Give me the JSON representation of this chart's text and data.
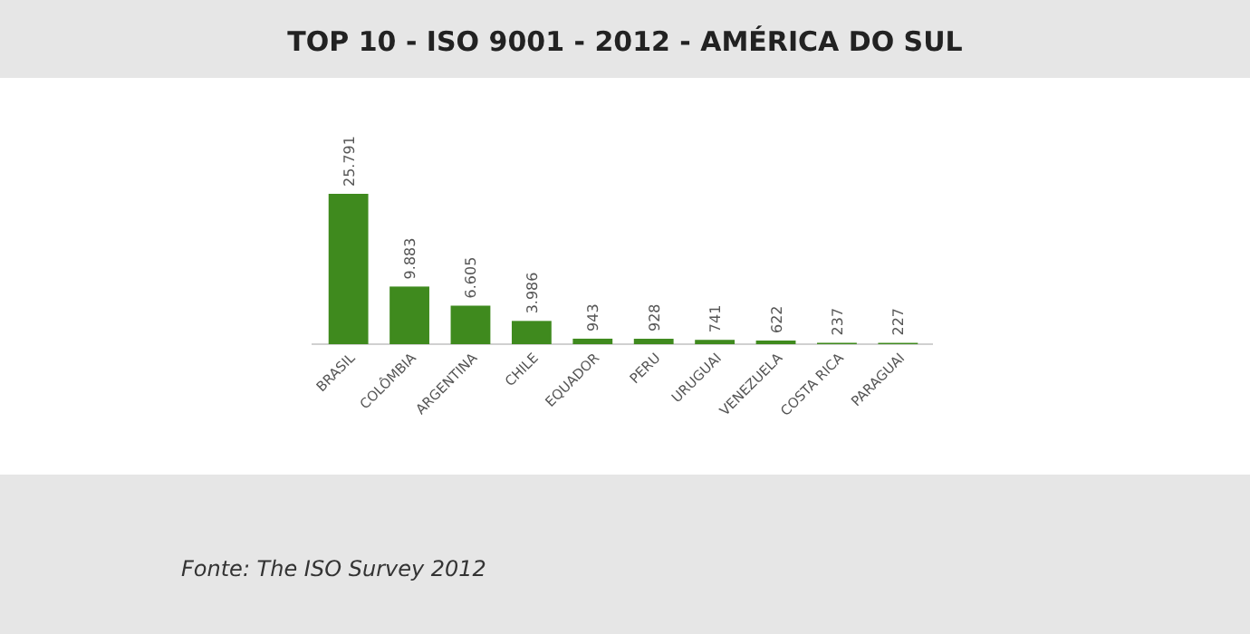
{
  "chart_data": {
    "type": "bar",
    "title": "TOP 10 - ISO 9001 - 2012 - AMÉRICA DO SUL",
    "categories": [
      "BRASIL",
      "COLÔMBIA",
      "ARGENTINA",
      "CHILE",
      "EQUADOR",
      "PERU",
      "URUGUAI",
      "VENEZUELA",
      "COSTA RICA",
      "PARAGUAI"
    ],
    "values": [
      25791,
      9883,
      6605,
      3986,
      943,
      928,
      741,
      622,
      237,
      227
    ],
    "value_labels": [
      "25.791",
      "9.883",
      "6.605",
      "3.986",
      "943",
      "928",
      "741",
      "622",
      "237",
      "227"
    ],
    "color": "#3f8a1e",
    "annotations": [
      "Fonte: The ISO Survey 2012"
    ]
  }
}
